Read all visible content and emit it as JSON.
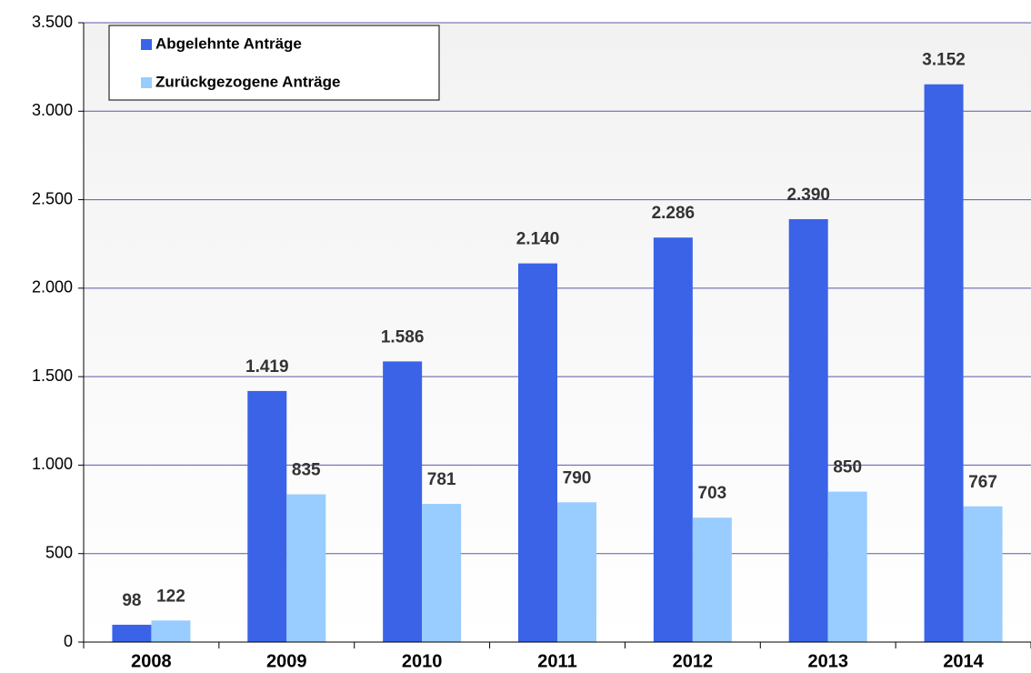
{
  "chart_data": {
    "type": "bar",
    "categories": [
      "2008",
      "2009",
      "2010",
      "2011",
      "2012",
      "2013",
      "2014"
    ],
    "series": [
      {
        "name": "Abgelehnte Anträge",
        "color": "#3a63e8",
        "values": [
          98,
          1419,
          1586,
          2140,
          2286,
          2390,
          3152
        ],
        "value_labels": [
          "98",
          "1.419",
          "1.586",
          "2.140",
          "2.286",
          "2.390",
          "3.152"
        ]
      },
      {
        "name": "Zurückgezogene Anträge",
        "color": "#99ccff",
        "values": [
          122,
          835,
          781,
          790,
          703,
          850,
          767
        ]
      }
    ],
    "ylim": [
      0,
      3500
    ],
    "yticks": [
      0,
      500,
      {
        "value": 1000,
        "label": "1.000"
      },
      {
        "value": 1500,
        "label": "1.500"
      },
      {
        "value": 2000,
        "label": "2.000"
      },
      {
        "value": 2500,
        "label": "2.500"
      },
      {
        "value": 3000,
        "label": "3.000"
      },
      {
        "value": 3500,
        "label": "3.500"
      }
    ],
    "grid": true,
    "legend": "upper left"
  }
}
